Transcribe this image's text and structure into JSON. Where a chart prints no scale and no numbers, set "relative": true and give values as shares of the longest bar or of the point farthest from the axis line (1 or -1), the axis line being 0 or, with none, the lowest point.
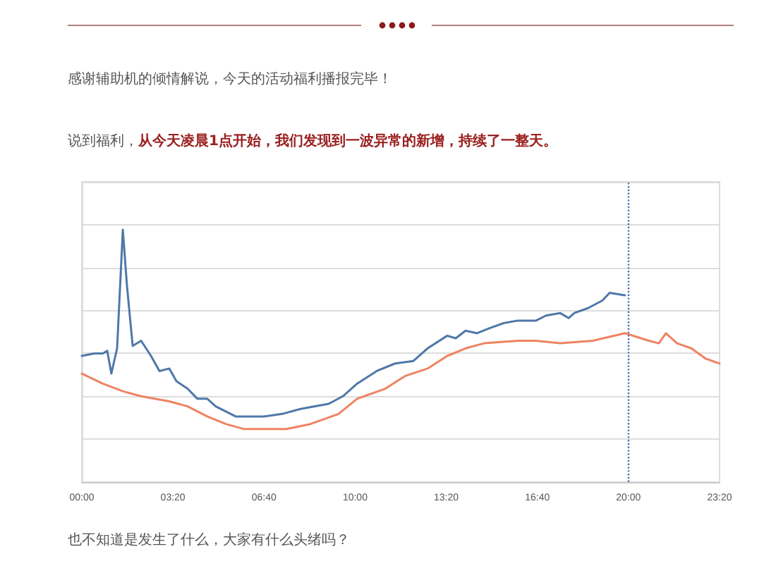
{
  "chart_data": {
    "type": "line",
    "relative": true,
    "annotations": [
      "感谢辅助机的倾情解说，今天的活动福利播报完毕！",
      "说到福利，",
      "从今天凌晨1点开始，我们发现到一波异常的新增，持续了一整天。",
      "也不知道是发生了什么，大家有什么头绪吗？"
    ],
    "xlim": [
      0,
      23.333
    ],
    "xticks": [
      {
        "value": 0,
        "label": "00:00"
      },
      {
        "value": 3.333,
        "label": "03:20"
      },
      {
        "value": 6.667,
        "label": "06:40"
      },
      {
        "value": 10,
        "label": "10:00"
      },
      {
        "value": 13.333,
        "label": "13:20"
      },
      {
        "value": 16.667,
        "label": "16:40"
      },
      {
        "value": 20,
        "label": "20:00"
      },
      {
        "value": 23.333,
        "label": "23:20"
      }
    ],
    "series": [
      {
        "color": "#4f78a8",
        "x": [
          0,
          0.46,
          0.77,
          0.93,
          1.08,
          1.29,
          1.5,
          1.65,
          1.86,
          2.17,
          2.53,
          2.84,
          3.2,
          3.46,
          3.87,
          4.23,
          4.59,
          4.9,
          5.63,
          6.66,
          7.33,
          8.0,
          9.03,
          9.55,
          10.07,
          10.79,
          11.46,
          12.13,
          12.65,
          13.37,
          13.68,
          14.04,
          14.45,
          14.92,
          15.43,
          15.95,
          16.62,
          16.98,
          17.5,
          17.81,
          18.02,
          18.53,
          19.05,
          19.31,
          19.87
        ],
        "values": [
          0.5,
          0.51,
          0.51,
          0.52,
          0.43,
          0.53,
          1.0,
          0.78,
          0.54,
          0.56,
          0.5,
          0.44,
          0.45,
          0.4,
          0.37,
          0.33,
          0.33,
          0.3,
          0.26,
          0.26,
          0.27,
          0.29,
          0.31,
          0.34,
          0.39,
          0.44,
          0.47,
          0.48,
          0.53,
          0.58,
          0.57,
          0.6,
          0.59,
          0.61,
          0.63,
          0.64,
          0.64,
          0.66,
          0.67,
          0.65,
          0.67,
          0.69,
          0.72,
          0.75,
          0.74
        ]
      },
      {
        "color": "#ee8363",
        "x": [
          0,
          0.77,
          1.5,
          2.17,
          3.2,
          3.87,
          4.59,
          5.27,
          5.94,
          7.48,
          8.36,
          9.39,
          10.07,
          11.1,
          11.82,
          12.65,
          13.37,
          14.04,
          14.71,
          15.95,
          16.62,
          17.5,
          18.69,
          19.87,
          20.75,
          21.11,
          21.37,
          21.78,
          22.3,
          22.81,
          23.33
        ],
        "values": [
          0.43,
          0.39,
          0.36,
          0.34,
          0.32,
          0.3,
          0.26,
          0.23,
          0.21,
          0.21,
          0.23,
          0.27,
          0.33,
          0.37,
          0.42,
          0.45,
          0.5,
          0.53,
          0.55,
          0.56,
          0.56,
          0.55,
          0.56,
          0.59,
          0.56,
          0.55,
          0.59,
          0.55,
          0.53,
          0.49,
          0.47
        ]
      }
    ],
    "ref_lines": [
      {
        "axis": "x",
        "value": 20,
        "label": null,
        "color": "#4f78a8",
        "line_style": "dotted"
      }
    ],
    "grid": "y",
    "marker": "none",
    "line_style": "solid"
  }
}
